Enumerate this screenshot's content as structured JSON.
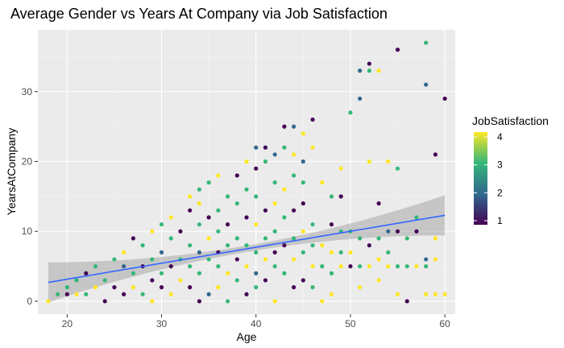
{
  "chart_data": {
    "type": "scatter",
    "title": "Average Gender vs Years At Company via Job Satisfaction",
    "xlabel": "Age",
    "ylabel": "YearsAtCompany",
    "xlim": [
      16.9,
      61.1
    ],
    "ylim": [
      -1.85,
      38.85
    ],
    "xticks": [
      20,
      30,
      40,
      50,
      60
    ],
    "yticks": [
      0,
      10,
      20,
      30
    ],
    "grid": true,
    "panel_background": "#ebebeb",
    "trend_line": {
      "method": "linear",
      "x": [
        18,
        60
      ],
      "y": [
        2.7,
        12.3
      ],
      "color": "#3366ff",
      "band_color": "#999999"
    },
    "colorbar": {
      "title": "JobSatisfaction",
      "min": 1,
      "max": 4,
      "ticks": [
        1,
        2,
        3,
        4
      ],
      "palette": [
        "#440154",
        "#31688e",
        "#35b779",
        "#fde725"
      ],
      "position": "right"
    },
    "points": [
      [
        18,
        0,
        4
      ],
      [
        19,
        1,
        3
      ],
      [
        20,
        1,
        1
      ],
      [
        20,
        2,
        3
      ],
      [
        21,
        1,
        4
      ],
      [
        21,
        3,
        3
      ],
      [
        22,
        4,
        1
      ],
      [
        22,
        1,
        3
      ],
      [
        23,
        5,
        3
      ],
      [
        23,
        2,
        4
      ],
      [
        24,
        0,
        1
      ],
      [
        24,
        3,
        3
      ],
      [
        25,
        6,
        3
      ],
      [
        25,
        2,
        1
      ],
      [
        26,
        7,
        4
      ],
      [
        26,
        5,
        2
      ],
      [
        26,
        1,
        1
      ],
      [
        27,
        9,
        1
      ],
      [
        27,
        4,
        3
      ],
      [
        27,
        2,
        4
      ],
      [
        28,
        8,
        3
      ],
      [
        28,
        5,
        1
      ],
      [
        28,
        1,
        3
      ],
      [
        29,
        10,
        4
      ],
      [
        29,
        6,
        3
      ],
      [
        29,
        3,
        1
      ],
      [
        29,
        0,
        4
      ],
      [
        30,
        11,
        3
      ],
      [
        30,
        7,
        2
      ],
      [
        30,
        4,
        3
      ],
      [
        30,
        2,
        1
      ],
      [
        31,
        12,
        4
      ],
      [
        31,
        9,
        3
      ],
      [
        31,
        5,
        1
      ],
      [
        31,
        1,
        4
      ],
      [
        32,
        10,
        1
      ],
      [
        32,
        6,
        3
      ],
      [
        32,
        3,
        4
      ],
      [
        33,
        15,
        4
      ],
      [
        33,
        13,
        1
      ],
      [
        33,
        8,
        3
      ],
      [
        33,
        5,
        3
      ],
      [
        33,
        2,
        1
      ],
      [
        34,
        16,
        3
      ],
      [
        34,
        14,
        4
      ],
      [
        34,
        11,
        3
      ],
      [
        34,
        7,
        2
      ],
      [
        34,
        4,
        3
      ],
      [
        34,
        0,
        1
      ],
      [
        35,
        17,
        3
      ],
      [
        35,
        12,
        1
      ],
      [
        35,
        9,
        4
      ],
      [
        35,
        6,
        3
      ],
      [
        35,
        1,
        2
      ],
      [
        36,
        18,
        4
      ],
      [
        36,
        13,
        3
      ],
      [
        36,
        10,
        3
      ],
      [
        36,
        7,
        1
      ],
      [
        36,
        5,
        3
      ],
      [
        36,
        2,
        4
      ],
      [
        37,
        15,
        3
      ],
      [
        37,
        11,
        1
      ],
      [
        37,
        8,
        3
      ],
      [
        37,
        4,
        4
      ],
      [
        37,
        0,
        3
      ],
      [
        38,
        18,
        1
      ],
      [
        38,
        14,
        3
      ],
      [
        38,
        9,
        3
      ],
      [
        38,
        6,
        1
      ],
      [
        38,
        3,
        3
      ],
      [
        39,
        20,
        4
      ],
      [
        39,
        16,
        3
      ],
      [
        39,
        12,
        1
      ],
      [
        39,
        8,
        3
      ],
      [
        39,
        5,
        4
      ],
      [
        39,
        1,
        1
      ],
      [
        40,
        22,
        2
      ],
      [
        40,
        19,
        1
      ],
      [
        40,
        15,
        3
      ],
      [
        40,
        11,
        4
      ],
      [
        40,
        7,
        3
      ],
      [
        40,
        4,
        2
      ],
      [
        40,
        2,
        3
      ],
      [
        41,
        22,
        1
      ],
      [
        41,
        20,
        3
      ],
      [
        41,
        13,
        1
      ],
      [
        41,
        9,
        3
      ],
      [
        41,
        6,
        4
      ],
      [
        41,
        3,
        1
      ],
      [
        42,
        21,
        2
      ],
      [
        42,
        17,
        3
      ],
      [
        42,
        14,
        4
      ],
      [
        42,
        10,
        3
      ],
      [
        42,
        7,
        1
      ],
      [
        42,
        5,
        3
      ],
      [
        42,
        0,
        4
      ],
      [
        43,
        25,
        1
      ],
      [
        43,
        22,
        3
      ],
      [
        43,
        16,
        4
      ],
      [
        43,
        12,
        3
      ],
      [
        43,
        8,
        1
      ],
      [
        43,
        4,
        3
      ],
      [
        44,
        25,
        2
      ],
      [
        44,
        21,
        4
      ],
      [
        44,
        18,
        3
      ],
      [
        44,
        13,
        1
      ],
      [
        44,
        9,
        3
      ],
      [
        44,
        6,
        4
      ],
      [
        44,
        2,
        1
      ],
      [
        45,
        24,
        4
      ],
      [
        45,
        20,
        2
      ],
      [
        45,
        17,
        3
      ],
      [
        45,
        14,
        1
      ],
      [
        45,
        10,
        4
      ],
      [
        45,
        7,
        3
      ],
      [
        45,
        3,
        1
      ],
      [
        46,
        26,
        1
      ],
      [
        46,
        22,
        4
      ],
      [
        46,
        11,
        3
      ],
      [
        46,
        8,
        3
      ],
      [
        46,
        5,
        4
      ],
      [
        46,
        2,
        3
      ],
      [
        47,
        17,
        4
      ],
      [
        47,
        8,
        4
      ],
      [
        47,
        5,
        3
      ],
      [
        47,
        0,
        4
      ],
      [
        48,
        15,
        3
      ],
      [
        48,
        11,
        1
      ],
      [
        48,
        7,
        4
      ],
      [
        48,
        4,
        3
      ],
      [
        48,
        1,
        4
      ],
      [
        49,
        19,
        4
      ],
      [
        49,
        15,
        1
      ],
      [
        49,
        10,
        3
      ],
      [
        49,
        7,
        3
      ],
      [
        49,
        5,
        4
      ],
      [
        50,
        27,
        3
      ],
      [
        50,
        10,
        3
      ],
      [
        50,
        7,
        4
      ],
      [
        50,
        5,
        1
      ],
      [
        51,
        29,
        2
      ],
      [
        51,
        33,
        2
      ],
      [
        51,
        9,
        3
      ],
      [
        51,
        5,
        3
      ],
      [
        51,
        2,
        4
      ],
      [
        52,
        34,
        1
      ],
      [
        52,
        33,
        3
      ],
      [
        52,
        20,
        4
      ],
      [
        52,
        8,
        1
      ],
      [
        52,
        5,
        4
      ],
      [
        53,
        33,
        4
      ],
      [
        53,
        14,
        1
      ],
      [
        53,
        9,
        3
      ],
      [
        53,
        6,
        4
      ],
      [
        53,
        3,
        4
      ],
      [
        54,
        20,
        4
      ],
      [
        54,
        10,
        2
      ],
      [
        54,
        7,
        3
      ],
      [
        54,
        5,
        4
      ],
      [
        55,
        36,
        1
      ],
      [
        55,
        19,
        3
      ],
      [
        55,
        10,
        1
      ],
      [
        55,
        5,
        3
      ],
      [
        55,
        1,
        4
      ],
      [
        56,
        9,
        3
      ],
      [
        56,
        5,
        3
      ],
      [
        56,
        0,
        1
      ],
      [
        57,
        12,
        3
      ],
      [
        57,
        10,
        1
      ],
      [
        57,
        5,
        4
      ],
      [
        58,
        37,
        3
      ],
      [
        58,
        31,
        2
      ],
      [
        58,
        6,
        2
      ],
      [
        58,
        5,
        3
      ],
      [
        58,
        1,
        4
      ],
      [
        59,
        21,
        1
      ],
      [
        59,
        9,
        4
      ],
      [
        59,
        6,
        4
      ],
      [
        59,
        1,
        4
      ],
      [
        60,
        29,
        1
      ],
      [
        60,
        1,
        4
      ]
    ]
  }
}
